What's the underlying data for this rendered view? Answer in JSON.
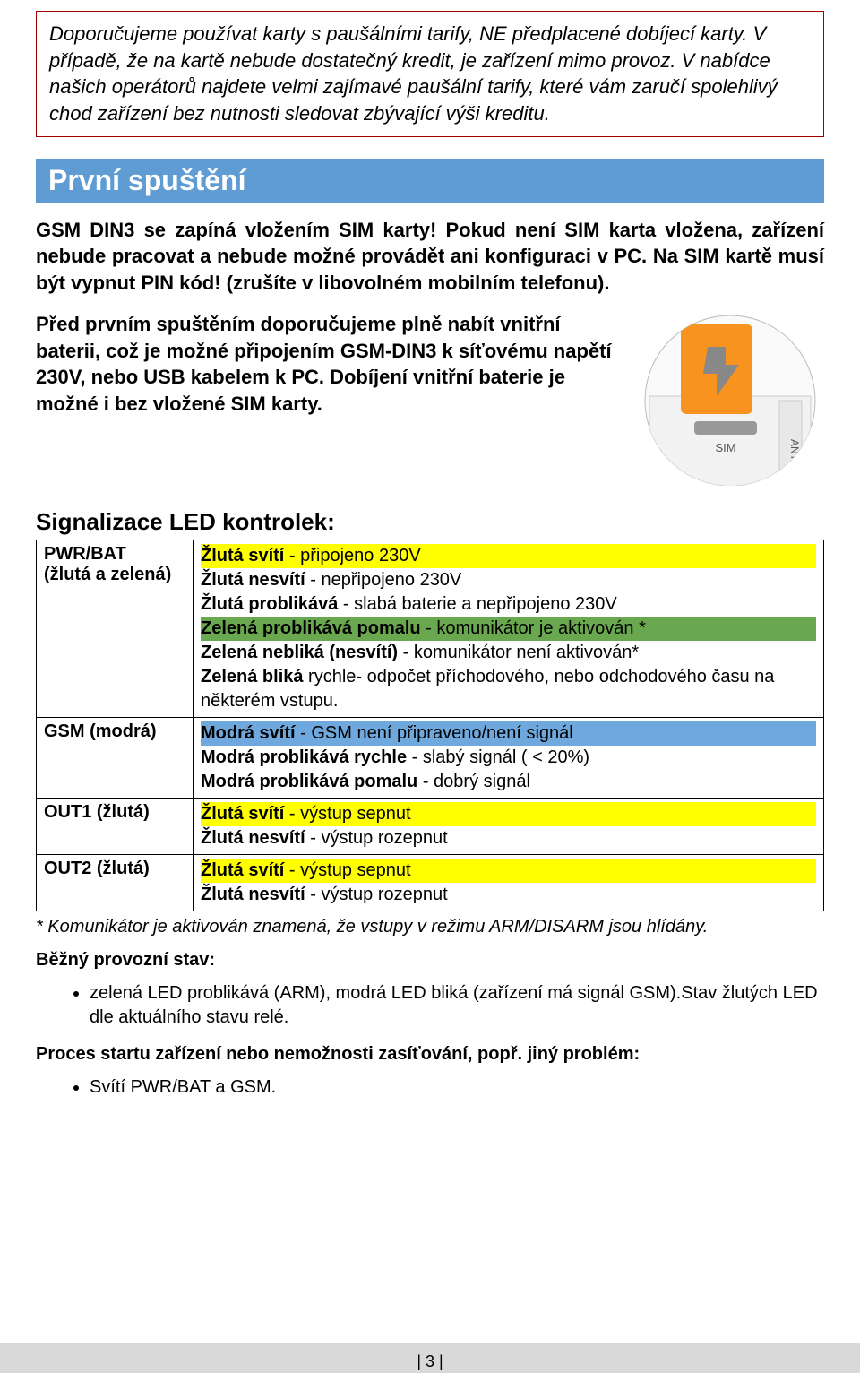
{
  "colors": {
    "box_border": "#a00000",
    "header_bg": "#5e9cd3",
    "header_fg": "#ffffff",
    "hl_yellow": "#ffff00",
    "hl_green": "#6aa84f",
    "hl_blue": "#6fa8dc",
    "footer_bg": "#d9d9d9",
    "orange_device": "#f7931e"
  },
  "box_text": "Doporučujeme používat karty s paušálními tarify, NE předplacené dobíjecí karty. V případě, že na kartě nebude dostatečný kredit, je zařízení mimo provoz. V nabídce našich operátorů najdete velmi zajímavé paušální tarify, které vám zaručí spolehlivý chod zařízení bez nutnosti sledovat zbývající výši kreditu.",
  "heading1": "První spuštění",
  "para1": "GSM DIN3 se zapíná vložením SIM karty! Pokud není SIM karta vložena, zařízení nebude pracovat a nebude možné provádět ani konfiguraci v PC.  Na SIM kartě musí být vypnut PIN kód! (zrušíte v libovolném mobilním telefonu).",
  "col_text": "Před prvním spuštěním doporučujeme plně nabít vnitřní baterii, což je možné připojením GSM-DIN3 k síťovému napětí 230V, nebo USB kabelem k PC. Dobíjení vnitřní baterie je možné i bez vložené SIM karty.",
  "subheading": "Signalizace LED kontrolek:",
  "led_table": {
    "rows": [
      {
        "label": "PWR/BAT\n(žlutá a zelená)",
        "lines": [
          {
            "cls": "hl-yellow",
            "html": "<b>Žlutá svítí</b> - připojeno 230V"
          },
          {
            "cls": "",
            "html": "<b>Žlutá nesvítí</b> - nepřipojeno 230V"
          },
          {
            "cls": "",
            "html": "<b>Žlutá problikává</b> - slabá baterie a nepřipojeno 230V"
          },
          {
            "cls": "hl-green",
            "html": "<b>Zelená  problikává pomalu</b> - komunikátor je aktivován *"
          },
          {
            "cls": "",
            "html": "<b>Zelená nebliká (nesvítí)</b> - komunikátor není aktivován*"
          },
          {
            "cls": "",
            "html": "<b>Zelená bliká</b> rychle- odpočet příchodového, nebo odchodového času na některém vstupu."
          }
        ]
      },
      {
        "label": "GSM (modrá)",
        "lines": [
          {
            "cls": "hl-blue",
            "html": "<b>Modrá svítí</b> - GSM není připraveno/není signál"
          },
          {
            "cls": "",
            "html": "<b>Modrá problikává rychle</b> - slabý signál ( < 20%)"
          },
          {
            "cls": "",
            "html": "<b>Modrá problikává pomalu</b> - dobrý signál"
          }
        ]
      },
      {
        "label": "OUT1 (žlutá)",
        "lines": [
          {
            "cls": "hl-yellow",
            "html": "<b>Žlutá svítí</b> - výstup sepnut"
          },
          {
            "cls": "",
            "html": "<b>Žlutá nesvítí</b> - výstup rozepnut"
          }
        ]
      },
      {
        "label": "OUT2 (žlutá)",
        "lines": [
          {
            "cls": "hl-yellow",
            "html": "<b>Žlutá svítí</b> - výstup sepnut"
          },
          {
            "cls": "",
            "html": "<b>Žlutá nesvítí</b> - výstup rozepnut"
          }
        ]
      }
    ]
  },
  "footnote": "* Komunikátor je aktivován znamená, že vstupy v režimu ARM/DISARM jsou hlídány.",
  "normal_heading": "Běžný provozní stav:",
  "normal_bullets": [
    "zelená LED problikává (ARM), modrá LED bliká (zařízení má signál GSM).Stav žlutých LED dle aktuálního stavu relé."
  ],
  "problem_heading": "Proces startu zařízení nebo nemožnosti zasíťování, popř. jiný problém:",
  "problem_bullets": [
    "Svítí PWR/BAT a GSM."
  ],
  "page_number": "| 3 |"
}
